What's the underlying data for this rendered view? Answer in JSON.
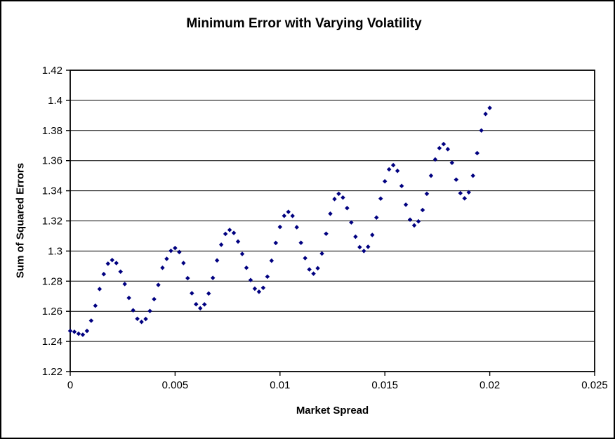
{
  "chart_data": {
    "type": "scatter",
    "title": "Minimum Error with Varying Volatility",
    "xlabel": "Market Spread",
    "ylabel": "Sum of Squared Errors",
    "xlim": [
      0,
      0.025
    ],
    "ylim": [
      1.22,
      1.42
    ],
    "x_ticks": [
      0,
      0.005,
      0.01,
      0.015,
      0.02,
      0.025
    ],
    "x_tick_labels": [
      "0",
      "0.005",
      "0.01",
      "0.015",
      "0.02",
      "0.025"
    ],
    "y_ticks": [
      1.22,
      1.24,
      1.26,
      1.28,
      1.3,
      1.32,
      1.34,
      1.36,
      1.38,
      1.4,
      1.42
    ],
    "y_tick_labels": [
      "1.22",
      "1.24",
      "1.26",
      "1.28",
      "1.3",
      "1.32",
      "1.34",
      "1.36",
      "1.38",
      "1.4",
      "1.42"
    ],
    "grid": "horizontal",
    "legend": "none",
    "marker": {
      "shape": "diamond",
      "color": "#000080",
      "size": 6.5
    },
    "series": [
      {
        "name": "Sum of Squared Errors",
        "x": [
          0,
          0.0002,
          0.0004,
          0.0006,
          0.0008,
          0.001,
          0.0012,
          0.0014,
          0.0016,
          0.0018,
          0.002,
          0.0022,
          0.0024,
          0.0026,
          0.0028,
          0.003,
          0.0032,
          0.0034,
          0.0036,
          0.0038,
          0.004,
          0.0042,
          0.0044,
          0.0046,
          0.0048,
          0.005,
          0.0052,
          0.0054,
          0.0056,
          0.0058,
          0.006,
          0.0062,
          0.0064,
          0.0066,
          0.0068,
          0.007,
          0.0072,
          0.0074,
          0.0076,
          0.0078,
          0.008,
          0.0082,
          0.0084,
          0.0086,
          0.0088,
          0.009,
          0.0092,
          0.0094,
          0.0096,
          0.0098,
          0.01,
          0.0102,
          0.0104,
          0.0106,
          0.0108,
          0.011,
          0.0112,
          0.0114,
          0.0116,
          0.0118,
          0.012,
          0.0122,
          0.0124,
          0.0126,
          0.0128,
          0.013,
          0.0132,
          0.0134,
          0.0136,
          0.0138,
          0.014,
          0.0142,
          0.0144,
          0.0146,
          0.0148,
          0.015,
          0.0152,
          0.0154,
          0.0156,
          0.0158,
          0.016,
          0.0162,
          0.0164,
          0.0166,
          0.0168,
          0.017,
          0.0172,
          0.0174,
          0.0176,
          0.0178,
          0.018,
          0.0182,
          0.0184,
          0.0186,
          0.0188,
          0.019,
          0.0192,
          0.0194,
          0.0196,
          0.0198,
          0.02
        ],
        "y": [
          1.247,
          1.2464,
          1.2451,
          1.2445,
          1.247,
          1.2538,
          1.2637,
          1.2748,
          1.2847,
          1.2916,
          1.294,
          1.292,
          1.2863,
          1.2781,
          1.2689,
          1.2607,
          1.255,
          1.253,
          1.2549,
          1.2602,
          1.2681,
          1.2775,
          1.2889,
          1.2948,
          1.3001,
          1.302,
          1.2993,
          1.292,
          1.282,
          1.272,
          1.2647,
          1.262,
          1.2646,
          1.2718,
          1.2822,
          1.2938,
          1.3042,
          1.3114,
          1.314,
          1.312,
          1.3063,
          1.2981,
          1.2889,
          1.2807,
          1.275,
          1.273,
          1.2756,
          1.283,
          1.2936,
          1.3054,
          1.316,
          1.3234,
          1.326,
          1.3233,
          1.3158,
          1.3055,
          1.2953,
          1.2878,
          1.285,
          1.2886,
          1.2983,
          1.3115,
          1.3248,
          1.3345,
          1.338,
          1.3355,
          1.3285,
          1.319,
          1.3095,
          1.3026,
          1.3,
          1.3028,
          1.3107,
          1.3222,
          1.3348,
          1.3463,
          1.3542,
          1.357,
          1.3532,
          1.3432,
          1.3308,
          1.3208,
          1.317,
          1.3197,
          1.3272,
          1.338,
          1.35,
          1.3608,
          1.3683,
          1.371,
          1.3676,
          1.3586,
          1.3474,
          1.3384,
          1.335,
          1.339,
          1.35,
          1.365,
          1.38,
          1.391,
          1.395
        ]
      }
    ],
    "colors": {
      "marker": "#000080",
      "grid": "#000000",
      "axis": "#000000",
      "background": "#ffffff"
    }
  }
}
